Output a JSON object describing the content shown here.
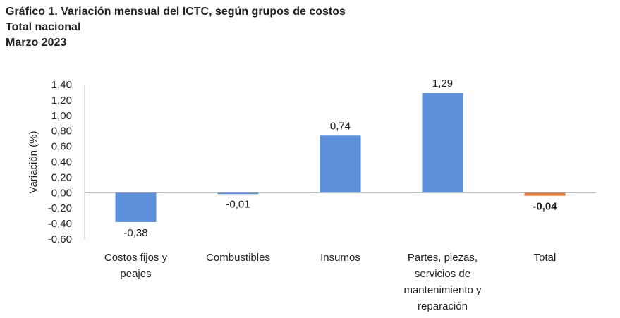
{
  "header": {
    "title": "Gráfico 1. Variación mensual del ICTC, según grupos de costos",
    "subtitle1": "Total nacional",
    "subtitle2": "Marzo 2023"
  },
  "chart_data": {
    "type": "bar",
    "title": "Gráfico 1. Variación mensual del ICTC, según grupos de costos",
    "ylabel": "Variación (%)",
    "xlabel": "",
    "ylim": [
      -0.6,
      1.4
    ],
    "ytick_step": 0.2,
    "yticks": [
      "1,40",
      "1,20",
      "1,00",
      "0,80",
      "0,60",
      "0,40",
      "0,20",
      "0,00",
      "-0,20",
      "-0,40",
      "-0,60"
    ],
    "grid": false,
    "categories": [
      [
        "Costos fijos y",
        "peajes"
      ],
      [
        "Combustibles"
      ],
      [
        "Insumos"
      ],
      [
        "Partes, piezas,",
        "servicios de",
        "mantenimiento y",
        "reparación"
      ],
      [
        "Total"
      ]
    ],
    "values": [
      -0.38,
      -0.01,
      0.74,
      1.29,
      -0.04
    ],
    "value_labels": [
      "-0,38",
      "-0,01",
      "0,74",
      "1,29",
      "-0,04"
    ],
    "bar_colors": [
      "#5b8fd9",
      "#5b8fd9",
      "#5b8fd9",
      "#5b8fd9",
      "#e07b39"
    ],
    "bold_labels": [
      false,
      false,
      false,
      false,
      true
    ]
  }
}
